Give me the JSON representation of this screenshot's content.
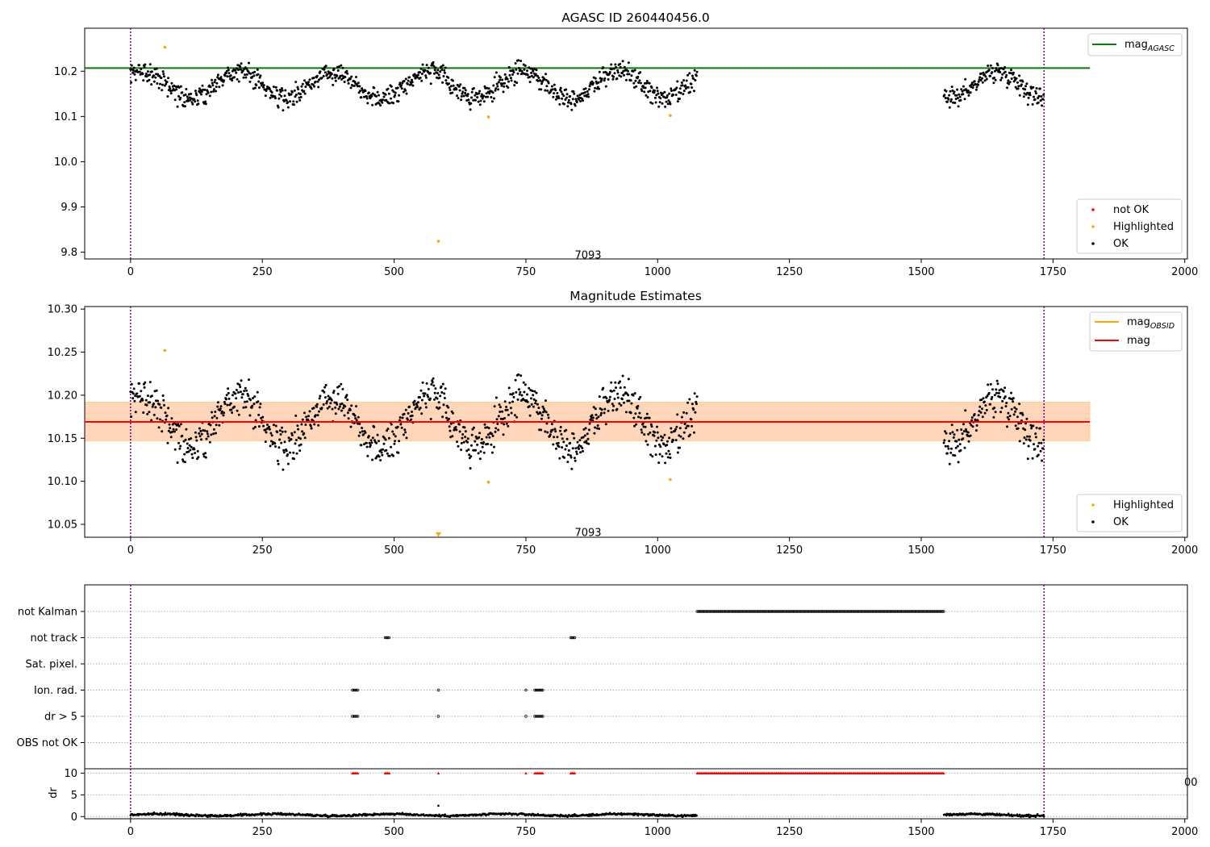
{
  "chart_data": [
    {
      "type": "scatter",
      "title": "AGASC ID 260440456.0",
      "xlim": [
        -87,
        2005
      ],
      "ylim": [
        9.785,
        10.295
      ],
      "xticks": [
        0,
        250,
        500,
        750,
        1000,
        1250,
        1500,
        1750,
        2000
      ],
      "yticks": [
        9.8,
        9.9,
        10.0,
        10.1,
        10.2
      ],
      "xtick_labels": [
        "0",
        "250",
        "500",
        "750",
        "1000",
        "1250",
        "1500",
        "1750",
        "2000"
      ],
      "ytick_labels": [
        "9.8",
        "9.9",
        "10.0",
        "10.1",
        "10.2"
      ],
      "obsid_label": {
        "text": "7093",
        "x": 868,
        "y": 9.795
      },
      "vlines": [
        0,
        1733
      ],
      "mag_agasc": {
        "value": 10.207,
        "x_range": [
          -87,
          1820
        ],
        "color": "#008000"
      },
      "segments": [
        {
          "x_start": 0,
          "x_end": 1075,
          "mean": 10.17,
          "amp": 0.03,
          "noise": 0.02,
          "period": 180
        },
        {
          "x_start": 1543,
          "x_end": 1733,
          "mean": 10.17,
          "amp": 0.03,
          "noise": 0.02,
          "period": 180
        }
      ],
      "highlighted": [
        [
          65,
          10.253
        ],
        [
          584,
          9.824
        ],
        [
          679,
          10.099
        ],
        [
          1024,
          10.102
        ]
      ],
      "legend_line": {
        "label": "mag",
        "subscript": "AGASC",
        "placement": "upper right"
      },
      "legend_points": [
        {
          "label": "not OK",
          "color": "#ff0000"
        },
        {
          "label": "Highlighted",
          "color": "#ffa500"
        },
        {
          "label": "OK",
          "color": "#000000"
        }
      ]
    },
    {
      "type": "scatter",
      "title": "Magnitude Estimates",
      "xlim": [
        -87,
        2005
      ],
      "ylim": [
        10.035,
        10.303
      ],
      "xticks": [
        0,
        250,
        500,
        750,
        1000,
        1250,
        1500,
        1750,
        2000
      ],
      "yticks": [
        10.05,
        10.1,
        10.15,
        10.2,
        10.25,
        10.3
      ],
      "xtick_labels": [
        "0",
        "250",
        "500",
        "750",
        "1000",
        "1250",
        "1500",
        "1750",
        "2000"
      ],
      "ytick_labels": [
        "10.05",
        "10.10",
        "10.15",
        "10.20",
        "10.25",
        "10.30"
      ],
      "obsid_label": {
        "text": "7093",
        "x": 868,
        "y": 10.041
      },
      "vlines": [
        0,
        1733
      ],
      "mag_line": {
        "value": 10.169,
        "x_range": [
          -87,
          1820
        ],
        "color": "#ff0000"
      },
      "band_outer": {
        "low": 10.147,
        "high": 10.192,
        "color": "#ffc0cb"
      },
      "band_obsid": {
        "low": 10.147,
        "high": 10.192,
        "x_range": [
          -87,
          1820
        ],
        "color": "#ffa500"
      },
      "segments": [
        {
          "x_start": 0,
          "x_end": 1075,
          "mean": 10.17,
          "amp": 0.03,
          "noise": 0.02,
          "period": 180
        },
        {
          "x_start": 1543,
          "x_end": 1733,
          "mean": 10.17,
          "amp": 0.03,
          "noise": 0.02,
          "period": 180
        }
      ],
      "highlighted": [
        [
          65,
          10.252
        ],
        [
          679,
          10.099
        ],
        [
          1024,
          10.102
        ]
      ],
      "clipped_marker": {
        "x": 584,
        "y": 10.038
      },
      "legend_line": [
        {
          "label": "mag",
          "subscript": "OBSID",
          "color": "#ffa500"
        },
        {
          "label": "mag",
          "subscript": "",
          "color": "#ff0000"
        }
      ],
      "legend_points": [
        {
          "label": "Highlighted",
          "color": "#ffa500"
        },
        {
          "label": "OK",
          "color": "#000000"
        }
      ]
    },
    {
      "type": "scatter",
      "title": "",
      "xlim": [
        -87,
        2005
      ],
      "categories": [
        "not Kalman",
        "not track",
        "Sat. pixel.",
        "Ion. rad.",
        "dr > 5",
        "OBS not OK"
      ],
      "flag_ranges": {
        "not Kalman": [
          [
            1075,
            1543
          ]
        ],
        "not track": [
          [
            483,
            492
          ],
          [
            835,
            843
          ]
        ],
        "Sat. pixel.": [],
        "Ion. rad.": [
          [
            421,
            432
          ],
          [
            584,
            585
          ],
          [
            750,
            751
          ],
          [
            767,
            782
          ]
        ],
        "dr > 5": [
          [
            421,
            432
          ],
          [
            584,
            585
          ],
          [
            750,
            751
          ],
          [
            767,
            782
          ]
        ],
        "OBS not OK": []
      },
      "red_ranges": [
        [
          421,
          432
        ],
        [
          483,
          492
        ],
        [
          584,
          585
        ],
        [
          750,
          751
        ],
        [
          767,
          782
        ],
        [
          835,
          843
        ],
        [
          1075,
          1543
        ]
      ],
      "vlines": [
        0,
        1733
      ],
      "dr": {
        "ylabel": "dr",
        "ylim": [
          -0.5,
          11
        ],
        "yticks": [
          0,
          5,
          10
        ],
        "ytick_labels": [
          "0",
          "5",
          "10"
        ],
        "flag_level": 10,
        "segments": [
          [
            0,
            1075
          ],
          [
            1543,
            1733
          ]
        ],
        "spike": [
          584,
          2.5
        ]
      },
      "xticks": [
        0,
        250,
        500,
        750,
        1000,
        1250,
        1500,
        1750,
        2000
      ],
      "xtick_labels": [
        "0",
        "250",
        "500",
        "750",
        "1000",
        "1250",
        "1500",
        "1750",
        "2000"
      ],
      "edge_label": "00"
    }
  ]
}
